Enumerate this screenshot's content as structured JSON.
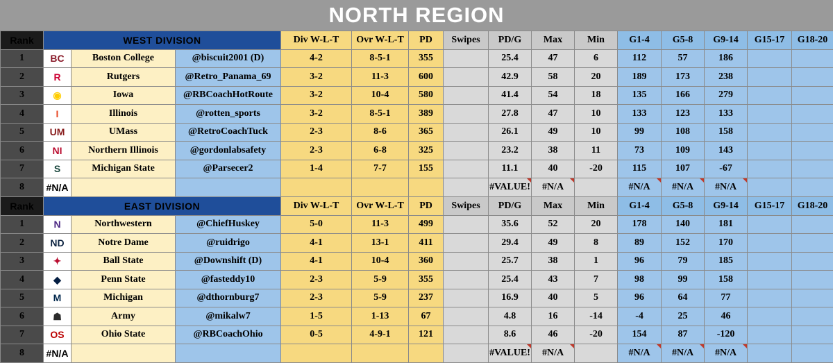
{
  "title": "NORTH REGION",
  "headers": {
    "rank": "Rank",
    "div": "Div W-L-T",
    "ovr": "Ovr W-L-T",
    "pd": "PD",
    "swipes": "Swipes",
    "pdg": "PD/G",
    "max": "Max",
    "min": "Min",
    "g1": "G1-4",
    "g5": "G5-8",
    "g9": "G9-14",
    "g15": "G15-17",
    "g18": "G18-20"
  },
  "divisions": [
    {
      "name": "WEST DIVISION",
      "rows": [
        {
          "rank": "1",
          "logo": "boston-college-logo",
          "team": "Boston College",
          "handle": "@biscuit2001 (D)",
          "div": "4-2",
          "ovr": "8-5-1",
          "pd": "355",
          "swipes": "",
          "pdg": "25.4",
          "max": "47",
          "min": "6",
          "g1": "112",
          "g5": "57",
          "g9": "186",
          "g15": "",
          "g18": ""
        },
        {
          "rank": "2",
          "logo": "rutgers-logo",
          "team": "Rutgers",
          "handle": "@Retro_Panama_69",
          "div": "3-2",
          "ovr": "11-3",
          "pd": "600",
          "swipes": "",
          "pdg": "42.9",
          "max": "58",
          "min": "20",
          "g1": "189",
          "g5": "173",
          "g9": "238",
          "g15": "",
          "g18": ""
        },
        {
          "rank": "3",
          "logo": "iowa-logo",
          "team": "Iowa",
          "handle": "@RBCoachHotRoute",
          "div": "3-2",
          "ovr": "10-4",
          "pd": "580",
          "swipes": "",
          "pdg": "41.4",
          "max": "54",
          "min": "18",
          "g1": "135",
          "g5": "166",
          "g9": "279",
          "g15": "",
          "g18": ""
        },
        {
          "rank": "4",
          "logo": "illinois-logo",
          "team": "Illinois",
          "handle": "@rotten_sports",
          "div": "3-2",
          "ovr": "8-5-1",
          "pd": "389",
          "swipes": "",
          "pdg": "27.8",
          "max": "47",
          "min": "10",
          "g1": "133",
          "g5": "123",
          "g9": "133",
          "g15": "",
          "g18": ""
        },
        {
          "rank": "5",
          "logo": "umass-logo",
          "team": "UMass",
          "handle": "@RetroCoachTuck",
          "div": "2-3",
          "ovr": "8-6",
          "pd": "365",
          "swipes": "",
          "pdg": "26.1",
          "max": "49",
          "min": "10",
          "g1": "99",
          "g5": "108",
          "g9": "158",
          "g15": "",
          "g18": ""
        },
        {
          "rank": "6",
          "logo": "northern-illinois-logo",
          "team": "Northern Illinois",
          "handle": "@gordonlabsafety",
          "div": "2-3",
          "ovr": "6-8",
          "pd": "325",
          "swipes": "",
          "pdg": "23.2",
          "max": "38",
          "min": "11",
          "g1": "73",
          "g5": "109",
          "g9": "143",
          "g15": "",
          "g18": ""
        },
        {
          "rank": "7",
          "logo": "michigan-state-logo",
          "team": "Michigan State",
          "handle": "@Parsecer2",
          "div": "1-4",
          "ovr": "7-7",
          "pd": "155",
          "swipes": "",
          "pdg": "11.1",
          "max": "40",
          "min": "-20",
          "g1": "115",
          "g5": "107",
          "g9": "-67",
          "g15": "",
          "g18": ""
        },
        {
          "rank": "8",
          "logo": "#N/A",
          "team": "",
          "handle": "",
          "div": "",
          "ovr": "",
          "pd": "",
          "swipes": "",
          "pdg": "#VALUE!",
          "max": "#N/A",
          "min": "",
          "g1": "#N/A",
          "g5": "#N/A",
          "g9": "#N/A",
          "g15": "",
          "g18": ""
        }
      ]
    },
    {
      "name": "EAST DIVISION",
      "rows": [
        {
          "rank": "1",
          "logo": "northwestern-logo",
          "team": "Northwestern",
          "handle": "@ChiefHuskey",
          "div": "5-0",
          "ovr": "11-3",
          "pd": "499",
          "swipes": "",
          "pdg": "35.6",
          "max": "52",
          "min": "20",
          "g1": "178",
          "g5": "140",
          "g9": "181",
          "g15": "",
          "g18": ""
        },
        {
          "rank": "2",
          "logo": "notre-dame-logo",
          "team": "Notre Dame",
          "handle": "@ruidrigo",
          "div": "4-1",
          "ovr": "13-1",
          "pd": "411",
          "swipes": "",
          "pdg": "29.4",
          "max": "49",
          "min": "8",
          "g1": "89",
          "g5": "152",
          "g9": "170",
          "g15": "",
          "g18": ""
        },
        {
          "rank": "3",
          "logo": "ball-state-logo",
          "team": "Ball State",
          "handle": "@Downshift (D)",
          "div": "4-1",
          "ovr": "10-4",
          "pd": "360",
          "swipes": "",
          "pdg": "25.7",
          "max": "38",
          "min": "1",
          "g1": "96",
          "g5": "79",
          "g9": "185",
          "g15": "",
          "g18": ""
        },
        {
          "rank": "4",
          "logo": "penn-state-logo",
          "team": "Penn State",
          "handle": "@fasteddy10",
          "div": "2-3",
          "ovr": "5-9",
          "pd": "355",
          "swipes": "",
          "pdg": "25.4",
          "max": "43",
          "min": "7",
          "g1": "98",
          "g5": "99",
          "g9": "158",
          "g15": "",
          "g18": ""
        },
        {
          "rank": "5",
          "logo": "michigan-logo",
          "team": "Michigan",
          "handle": "@dthornburg7",
          "div": "2-3",
          "ovr": "5-9",
          "pd": "237",
          "swipes": "",
          "pdg": "16.9",
          "max": "40",
          "min": "5",
          "g1": "96",
          "g5": "64",
          "g9": "77",
          "g15": "",
          "g18": ""
        },
        {
          "rank": "6",
          "logo": "army-logo",
          "team": "Army",
          "handle": "@mikalw7",
          "div": "1-5",
          "ovr": "1-13",
          "pd": "67",
          "swipes": "",
          "pdg": "4.8",
          "max": "16",
          "min": "-14",
          "g1": "-4",
          "g5": "25",
          "g9": "46",
          "g15": "",
          "g18": ""
        },
        {
          "rank": "7",
          "logo": "ohio-state-logo",
          "team": "Ohio State",
          "handle": "@RBCoachOhio",
          "div": "0-5",
          "ovr": "4-9-1",
          "pd": "121",
          "swipes": "",
          "pdg": "8.6",
          "max": "46",
          "min": "-20",
          "g1": "154",
          "g5": "87",
          "g9": "-120",
          "g15": "",
          "g18": ""
        },
        {
          "rank": "8",
          "logo": "#N/A",
          "team": "",
          "handle": "",
          "div": "",
          "ovr": "",
          "pd": "",
          "swipes": "",
          "pdg": "#VALUE!",
          "max": "#N/A",
          "min": "",
          "g1": "#N/A",
          "g5": "#N/A",
          "g9": "#N/A",
          "g15": "",
          "g18": ""
        }
      ]
    }
  ],
  "logo_colors": {
    "boston-college-logo": "#8a1c2b",
    "rutgers-logo": "#cc0033",
    "iowa-logo": "#ffcd00",
    "illinois-logo": "#e84a27",
    "umass-logo": "#881c1c",
    "northern-illinois-logo": "#ba0c2f",
    "michigan-state-logo": "#18453b",
    "northwestern-logo": "#4e2a84",
    "notre-dame-logo": "#0c2340",
    "ball-state-logo": "#ba0c2f",
    "penn-state-logo": "#041e42",
    "michigan-logo": "#00274c",
    "army-logo": "#2b2b2b",
    "ohio-state-logo": "#bb0000"
  }
}
